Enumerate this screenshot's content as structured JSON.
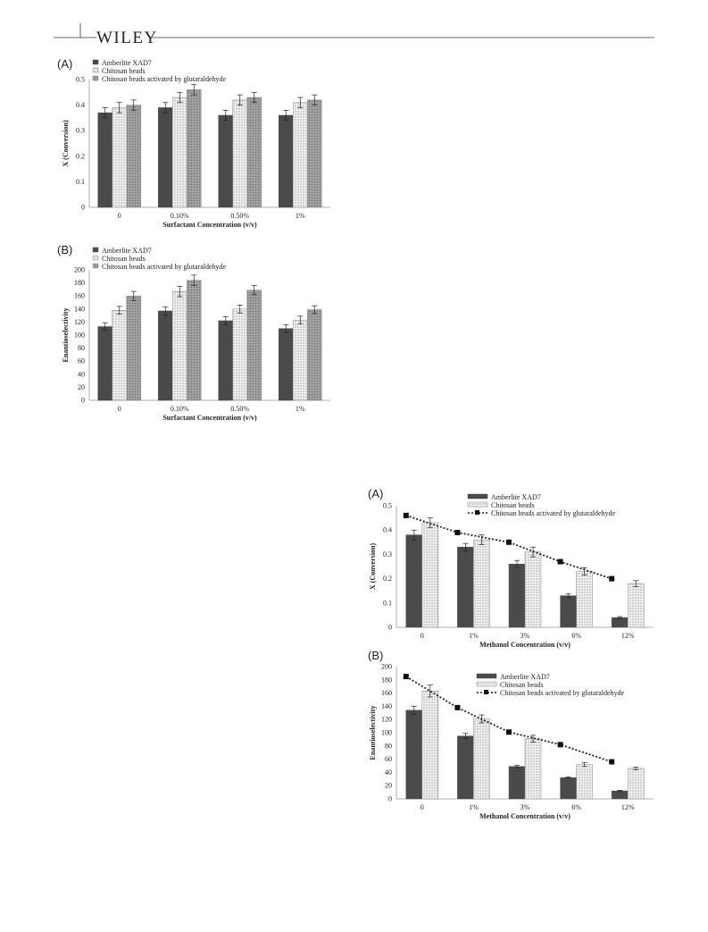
{
  "header": {
    "brand": "WILEY"
  },
  "colors": {
    "xad7": "#4a4a4a",
    "chitosan": "#e6e6e6",
    "glut": "#a9a9a9",
    "axis": "#999999",
    "text": "#222222"
  },
  "chart_data": [
    {
      "panel": "(A)",
      "type": "bar",
      "categories": [
        "0",
        "0.10%",
        "0.50%",
        "1%"
      ],
      "xlabel": "Surfactant Concentration (v/v)",
      "ylabel": "X (Conversion)",
      "ylim": [
        0,
        0.5
      ],
      "yticks": [
        "0",
        "0.1",
        "0.2",
        "0.3",
        "0.4",
        "0.5"
      ],
      "grid": false,
      "legend_position": "top-left",
      "series": [
        {
          "name": "Amberlite XAD7",
          "values": [
            0.37,
            0.39,
            0.36,
            0.36
          ],
          "errors": [
            0.02,
            0.02,
            0.02,
            0.02
          ]
        },
        {
          "name": "Chitosan beads",
          "values": [
            0.39,
            0.43,
            0.42,
            0.41
          ],
          "errors": [
            0.02,
            0.02,
            0.02,
            0.02
          ]
        },
        {
          "name": "Chitosan beads activated by glutaraldehyde",
          "values": [
            0.4,
            0.46,
            0.43,
            0.42
          ],
          "errors": [
            0.02,
            0.02,
            0.02,
            0.02
          ]
        }
      ]
    },
    {
      "panel": "(B)",
      "type": "bar",
      "categories": [
        "0",
        "0.10%",
        "0.50%",
        "1%"
      ],
      "xlabel": "Surfactant Concentration (v/v)",
      "ylabel": "Enantioselectivity",
      "ylim": [
        0,
        200
      ],
      "yticks": [
        "0",
        "20",
        "40",
        "60",
        "80",
        "100",
        "120",
        "140",
        "160",
        "180",
        "200"
      ],
      "grid": false,
      "legend_position": "top-left",
      "series": [
        {
          "name": "Amberlite XAD7",
          "values": [
            113,
            137,
            122,
            110
          ],
          "errors": [
            6,
            6,
            6,
            6
          ]
        },
        {
          "name": "Chitosan beads",
          "values": [
            138,
            167,
            140,
            123
          ],
          "errors": [
            6,
            8,
            6,
            6
          ]
        },
        {
          "name": "Chitosan beads activated by glutaraldehyde",
          "values": [
            160,
            184,
            169,
            139
          ],
          "errors": [
            7,
            8,
            7,
            6
          ]
        }
      ]
    },
    {
      "panel": "(A)",
      "type": "bar",
      "categories": [
        "0",
        "1%",
        "3%",
        "6%",
        "12%"
      ],
      "xlabel": "Methanol Concentration (v/v)",
      "ylabel": "X (Conversion)",
      "ylim": [
        0,
        0.5
      ],
      "yticks": [
        "0",
        "0.1",
        "0.2",
        "0.3",
        "0.4",
        "0.5"
      ],
      "grid": false,
      "legend_position": "top-right",
      "series": [
        {
          "name": "Amberlite XAD7",
          "values": [
            0.38,
            0.33,
            0.26,
            0.13,
            0.04
          ],
          "errors": [
            0.02,
            0.015,
            0.015,
            0.008,
            0.004
          ]
        },
        {
          "name": "Chitosan beads",
          "values": [
            0.43,
            0.36,
            0.31,
            0.23,
            0.18
          ],
          "errors": [
            0.02,
            0.02,
            0.02,
            0.015,
            0.012
          ]
        }
      ],
      "line_series": {
        "name": "Chitosan beads activated by glutaraldehyde",
        "values": [
          0.46,
          0.39,
          0.35,
          0.27,
          0.2
        ]
      }
    },
    {
      "panel": "(B)",
      "type": "bar",
      "categories": [
        "0",
        "1%",
        "3%",
        "6%",
        "12%"
      ],
      "xlabel": "Methanol Concentration (v/v)",
      "ylabel": "Enantioselectivity",
      "ylim": [
        0,
        200
      ],
      "yticks": [
        "0",
        "20",
        "40",
        "60",
        "80",
        "100",
        "120",
        "140",
        "160",
        "180",
        "200"
      ],
      "grid": false,
      "legend_position": "top-right",
      "series": [
        {
          "name": "Amberlite XAD7",
          "values": [
            134,
            95,
            49,
            32,
            12
          ],
          "errors": [
            6,
            4,
            2,
            1,
            1
          ]
        },
        {
          "name": "Chitosan beads",
          "values": [
            163,
            121,
            91,
            52,
            46
          ],
          "errors": [
            9,
            6,
            5,
            3,
            2
          ]
        }
      ],
      "line_series": {
        "name": "Chitosan beads activated by glutaraldehyde",
        "values": [
          185,
          138,
          101,
          82,
          56
        ]
      }
    }
  ]
}
